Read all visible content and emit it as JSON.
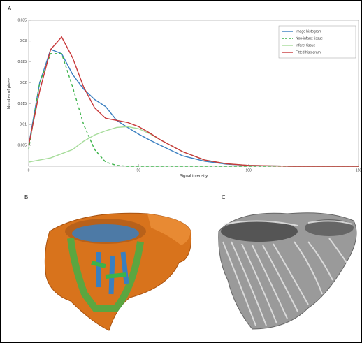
{
  "figure": {
    "panel_labels": [
      "A",
      "B",
      "C"
    ]
  },
  "chart_data": {
    "type": "line",
    "x_label": "Signal intensity",
    "y_label": "Number of pixels",
    "x": [
      0,
      5,
      10,
      15,
      20,
      25,
      30,
      35,
      40,
      45,
      50,
      55,
      60,
      70,
      80,
      90,
      100,
      110,
      120,
      130,
      140,
      150
    ],
    "series": [
      {
        "name": "Image histogram",
        "color": "#3a7fc0",
        "dash": false,
        "values": [
          0.005,
          0.02,
          0.028,
          0.027,
          0.022,
          0.0185,
          0.016,
          0.0143,
          0.011,
          0.0093,
          0.0077,
          0.0063,
          0.005,
          0.0025,
          0.0012,
          0.0005,
          0.0002,
          0.0001,
          0,
          0,
          0,
          0
        ]
      },
      {
        "name": "Non-infarct tissue",
        "color": "#3cb34a",
        "dash": true,
        "values": [
          0.004,
          0.02,
          0.027,
          0.027,
          0.019,
          0.01,
          0.004,
          0.001,
          0.0002,
          0,
          0,
          0,
          0,
          0,
          0,
          0,
          0,
          0,
          0,
          0,
          0,
          0
        ]
      },
      {
        "name": "Infarct tissue",
        "color": "#a6dc9a",
        "dash": false,
        "values": [
          0.001,
          0.0015,
          0.002,
          0.003,
          0.004,
          0.006,
          0.0075,
          0.0085,
          0.0093,
          0.0095,
          0.009,
          0.0078,
          0.0063,
          0.0035,
          0.0015,
          0.0006,
          0.0002,
          0.0001,
          0,
          0,
          0,
          0
        ]
      },
      {
        "name": "Fitted histogram",
        "color": "#c8383a",
        "dash": false,
        "values": [
          0.005,
          0.018,
          0.028,
          0.031,
          0.026,
          0.019,
          0.014,
          0.0115,
          0.011,
          0.0105,
          0.0095,
          0.008,
          0.0063,
          0.0035,
          0.0015,
          0.0006,
          0.0002,
          0.0001,
          0,
          0,
          0,
          0
        ]
      }
    ],
    "xlim": [
      0,
      150
    ],
    "xticks": [
      0,
      50,
      100,
      150
    ],
    "ylim": [
      0,
      0.035
    ],
    "yticks": [
      0.005,
      0.01,
      0.015,
      0.02,
      0.025,
      0.03,
      0.035
    ],
    "legend": "upper right"
  }
}
